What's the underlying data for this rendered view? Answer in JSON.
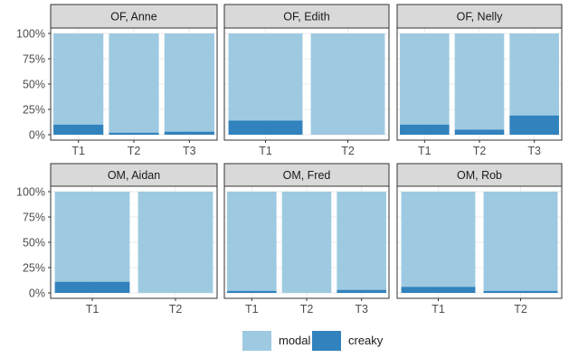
{
  "chart_data": {
    "type": "bar",
    "stacked": true,
    "y_tick_labels": [
      "0%",
      "25%",
      "50%",
      "75%",
      "100%"
    ],
    "y_ticks": [
      0,
      25,
      50,
      75,
      100
    ],
    "ylim": [
      0,
      100
    ],
    "grid": true,
    "legend_position": "bottom",
    "series_names": [
      "modal",
      "creaky"
    ],
    "colors": {
      "modal": "#9ecae1",
      "creaky": "#3182bd",
      "panel_border": "#333333",
      "strip": "#d9d9d9",
      "grid": "#ebebeb"
    },
    "panels": [
      {
        "title": "OF, Anne",
        "categories": [
          "T1",
          "T2",
          "T3"
        ],
        "creaky": [
          10,
          2,
          3
        ]
      },
      {
        "title": "OF, Edith",
        "categories": [
          "T1",
          "T2"
        ],
        "creaky": [
          14,
          0
        ]
      },
      {
        "title": "OF, Nelly",
        "categories": [
          "T1",
          "T2",
          "T3"
        ],
        "creaky": [
          10,
          5,
          19
        ]
      },
      {
        "title": "OM, Aidan",
        "categories": [
          "T1",
          "T2"
        ],
        "creaky": [
          11,
          0
        ]
      },
      {
        "title": "OM, Fred",
        "categories": [
          "T1",
          "T2",
          "T3"
        ],
        "creaky": [
          2,
          0,
          3
        ]
      },
      {
        "title": "OM, Rob",
        "categories": [
          "T1",
          "T2"
        ],
        "creaky": [
          6,
          2
        ]
      }
    ]
  },
  "legend": [
    {
      "label": "modal",
      "color": "#9ecae1"
    },
    {
      "label": "creaky",
      "color": "#3182bd"
    }
  ]
}
